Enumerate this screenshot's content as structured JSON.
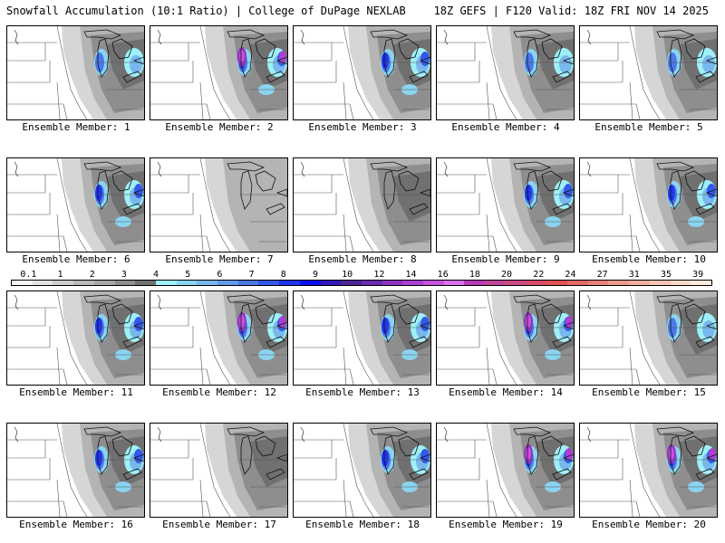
{
  "header": {
    "left": "Snowfall Accumulation (10:1 Ratio) | College of DuPage NEXLAB",
    "right": "18Z GEFS | F120 Valid: 18Z FRI NOV 14 2025"
  },
  "members": [
    {
      "label": "Ensemble Member: 1",
      "intensity": 2
    },
    {
      "label": "Ensemble Member: 2",
      "intensity": 4
    },
    {
      "label": "Ensemble Member: 3",
      "intensity": 3
    },
    {
      "label": "Ensemble Member: 4",
      "intensity": 2
    },
    {
      "label": "Ensemble Member: 5",
      "intensity": 2
    },
    {
      "label": "Ensemble Member: 6",
      "intensity": 3
    },
    {
      "label": "Ensemble Member: 7",
      "intensity": 0
    },
    {
      "label": "Ensemble Member: 8",
      "intensity": 1
    },
    {
      "label": "Ensemble Member: 9",
      "intensity": 3
    },
    {
      "label": "Ensemble Member: 10",
      "intensity": 3
    },
    {
      "label": "Ensemble Member: 11",
      "intensity": 3
    },
    {
      "label": "Ensemble Member: 12",
      "intensity": 4
    },
    {
      "label": "Ensemble Member: 13",
      "intensity": 3
    },
    {
      "label": "Ensemble Member: 14",
      "intensity": 4
    },
    {
      "label": "Ensemble Member: 15",
      "intensity": 2
    },
    {
      "label": "Ensemble Member: 16",
      "intensity": 3
    },
    {
      "label": "Ensemble Member: 17",
      "intensity": 1
    },
    {
      "label": "Ensemble Member: 18",
      "intensity": 3
    },
    {
      "label": "Ensemble Member: 19",
      "intensity": 4
    },
    {
      "label": "Ensemble Member: 20",
      "intensity": 4
    }
  ],
  "color_scale": {
    "ticks": [
      "0.1",
      "1",
      "2",
      "3",
      "4",
      "5",
      "6",
      "7",
      "8",
      "9",
      "10",
      "12",
      "14",
      "16",
      "18",
      "20",
      "22",
      "24",
      "27",
      "31",
      "35",
      "39"
    ],
    "colors": [
      "#f4f4f4",
      "#e2e2e2",
      "#cecece",
      "#bababa",
      "#a6a6a6",
      "#8e8e8e",
      "#707070",
      "#9ef0f8",
      "#8ad4f0",
      "#78b8ec",
      "#6498e8",
      "#4c78e8",
      "#3458ea",
      "#1e34ee",
      "#0a10f0",
      "#3218b8",
      "#4c2696",
      "#6a2cae",
      "#8c34c4",
      "#aa40d2",
      "#c652de",
      "#d872ea",
      "#b43cb4",
      "#c0469c",
      "#cc4a84",
      "#d84c6a",
      "#e05254",
      "#e46a66",
      "#e88278",
      "#ec9a8c",
      "#f0b0a0",
      "#f4c4b4",
      "#f8d8c8",
      "#fceadc"
    ]
  }
}
